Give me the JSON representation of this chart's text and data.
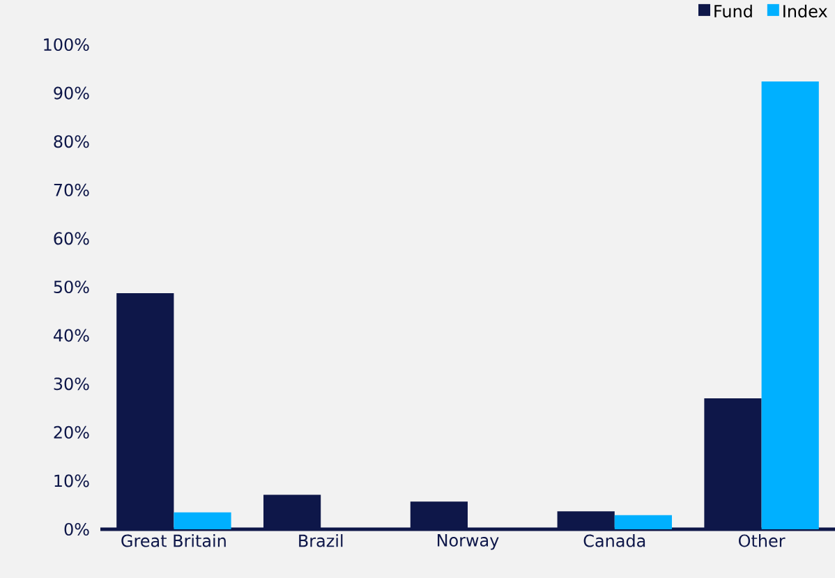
{
  "chart_data": {
    "type": "bar",
    "categories": [
      "Great Britain",
      "Brazil",
      "Norway",
      "Canada",
      "Other"
    ],
    "series": [
      {
        "name": "Fund",
        "color": "#0e1749",
        "values": [
          48.7,
          7.1,
          5.7,
          3.7,
          27.0
        ]
      },
      {
        "name": "Index",
        "color": "#00b0ff",
        "values": [
          3.5,
          0,
          0,
          2.9,
          92.4
        ]
      }
    ],
    "ylim": [
      0,
      100
    ],
    "yticks": [
      {
        "value": 0,
        "label": "0%"
      },
      {
        "value": 10,
        "label": "10%"
      },
      {
        "value": 20,
        "label": "20%"
      },
      {
        "value": 30,
        "label": "30%"
      },
      {
        "value": 40,
        "label": "40%"
      },
      {
        "value": 50,
        "label": "50%"
      },
      {
        "value": 60,
        "label": "60%"
      },
      {
        "value": 70,
        "label": "70%"
      },
      {
        "value": 80,
        "label": "80%"
      },
      {
        "value": 90,
        "label": "90%"
      },
      {
        "value": 100,
        "label": "100%"
      }
    ],
    "legend": "top right"
  }
}
